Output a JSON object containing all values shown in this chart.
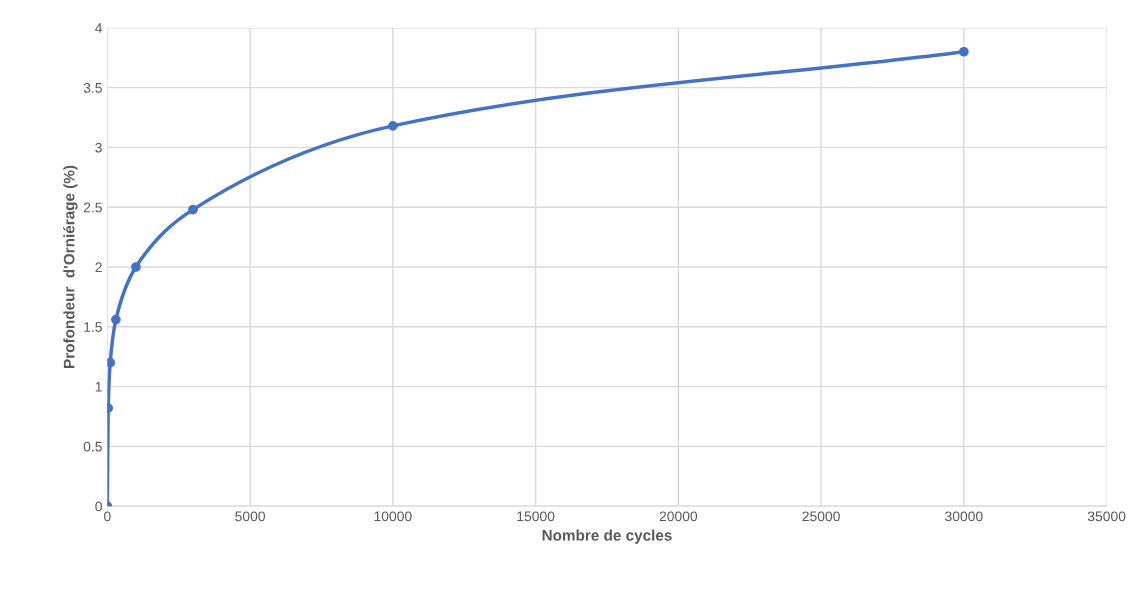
{
  "chart_data": {
    "type": "line",
    "xlabel": "Nombre de cycles",
    "ylabel": "Profondeur  d'Orniérage (%)",
    "series": [
      {
        "color": "#4472c4",
        "x": [
          0,
          30,
          100,
          300,
          1000,
          3000,
          10000,
          30000
        ],
        "values": [
          0,
          0.82,
          1.2,
          1.56,
          2.0,
          2.48,
          3.18,
          3.8
        ]
      }
    ],
    "xlim": [
      0,
      35000
    ],
    "xticks": [
      0,
      5000,
      10000,
      15000,
      20000,
      25000,
      30000,
      35000
    ],
    "ylim": [
      0,
      4
    ],
    "yticks": [
      0,
      0.5,
      1,
      1.5,
      2,
      2.5,
      3,
      3.5,
      4
    ],
    "grid": true,
    "marker": "circle",
    "line_style": "solid",
    "legend": false
  }
}
